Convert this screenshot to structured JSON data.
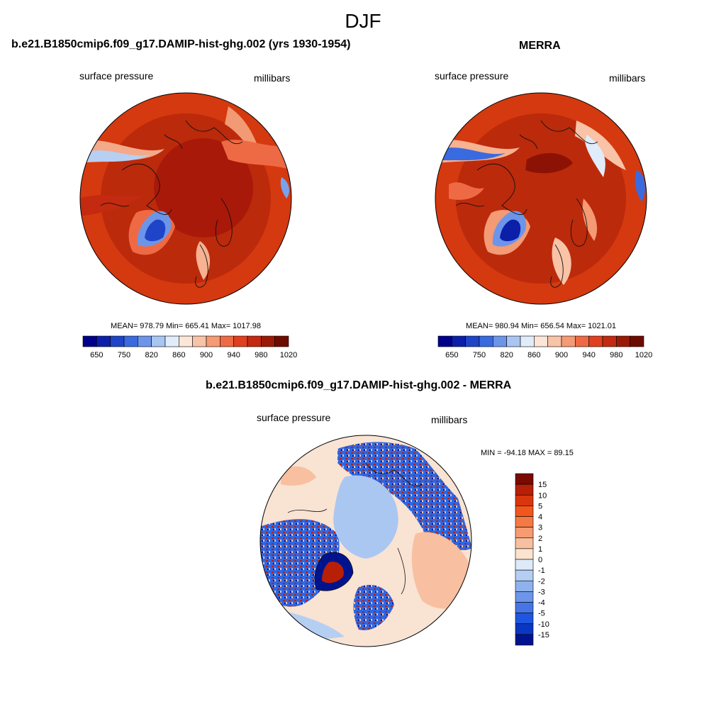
{
  "title": "DJF",
  "panels": [
    {
      "title": "b.e21.B1850cmip6.f09_g17.DAMIP-hist-ghg.002 (yrs 1930-1954)",
      "left_label": "surface pressure",
      "right_label": "millibars",
      "stats": "MEAN= 978.79  Min= 665.41  Max= 1017.98"
    },
    {
      "title": "MERRA",
      "left_label": "surface pressure",
      "right_label": "millibars",
      "stats": "MEAN= 980.94  Min= 656.54  Max= 1021.01"
    },
    {
      "title": "b.e21.B1850cmip6.f09_g17.DAMIP-hist-ghg.002 - MERRA",
      "left_label": "surface pressure",
      "right_label": "millibars",
      "stats": "MIN = -94.18 MAX =  89.15"
    }
  ],
  "colorbar_top": {
    "ticks": [
      "650",
      "750",
      "820",
      "860",
      "900",
      "940",
      "980",
      "1020"
    ],
    "colors": [
      "#00008b",
      "#0b1fa8",
      "#1f44c8",
      "#3a6ae0",
      "#6c95ea",
      "#a9c6f2",
      "#e0ecfa",
      "#fbe6d8",
      "#f8c3a6",
      "#f49a74",
      "#ee6a45",
      "#e0401f",
      "#c32a10",
      "#9b1a07",
      "#6e0b00"
    ]
  },
  "colorbar_diff": {
    "labels": [
      "15",
      "10",
      "5",
      "4",
      "3",
      "2",
      "1",
      "0",
      "-1",
      "-2",
      "-3",
      "-4",
      "-5",
      "-10",
      "-15"
    ],
    "colors": [
      "#7a0a00",
      "#b81f07",
      "#d9360e",
      "#f2561d",
      "#f47a45",
      "#f69b72",
      "#f8c0a0",
      "#fbe3d0",
      "#deeaf8",
      "#b5cff3",
      "#8fb2ee",
      "#6d95ea",
      "#4676e6",
      "#1f56e0",
      "#0a36c2",
      "#00138f"
    ]
  },
  "map_colors": {
    "land_dark": "#a8190a",
    "land_mid": "#d83b10",
    "ocean": "#be2a0b",
    "low_blue": "#1c4ed6",
    "diff_bg": "#f9e3d3",
    "diff_blue": "#2f67e2",
    "diff_light_blue": "#a9c7f1"
  }
}
